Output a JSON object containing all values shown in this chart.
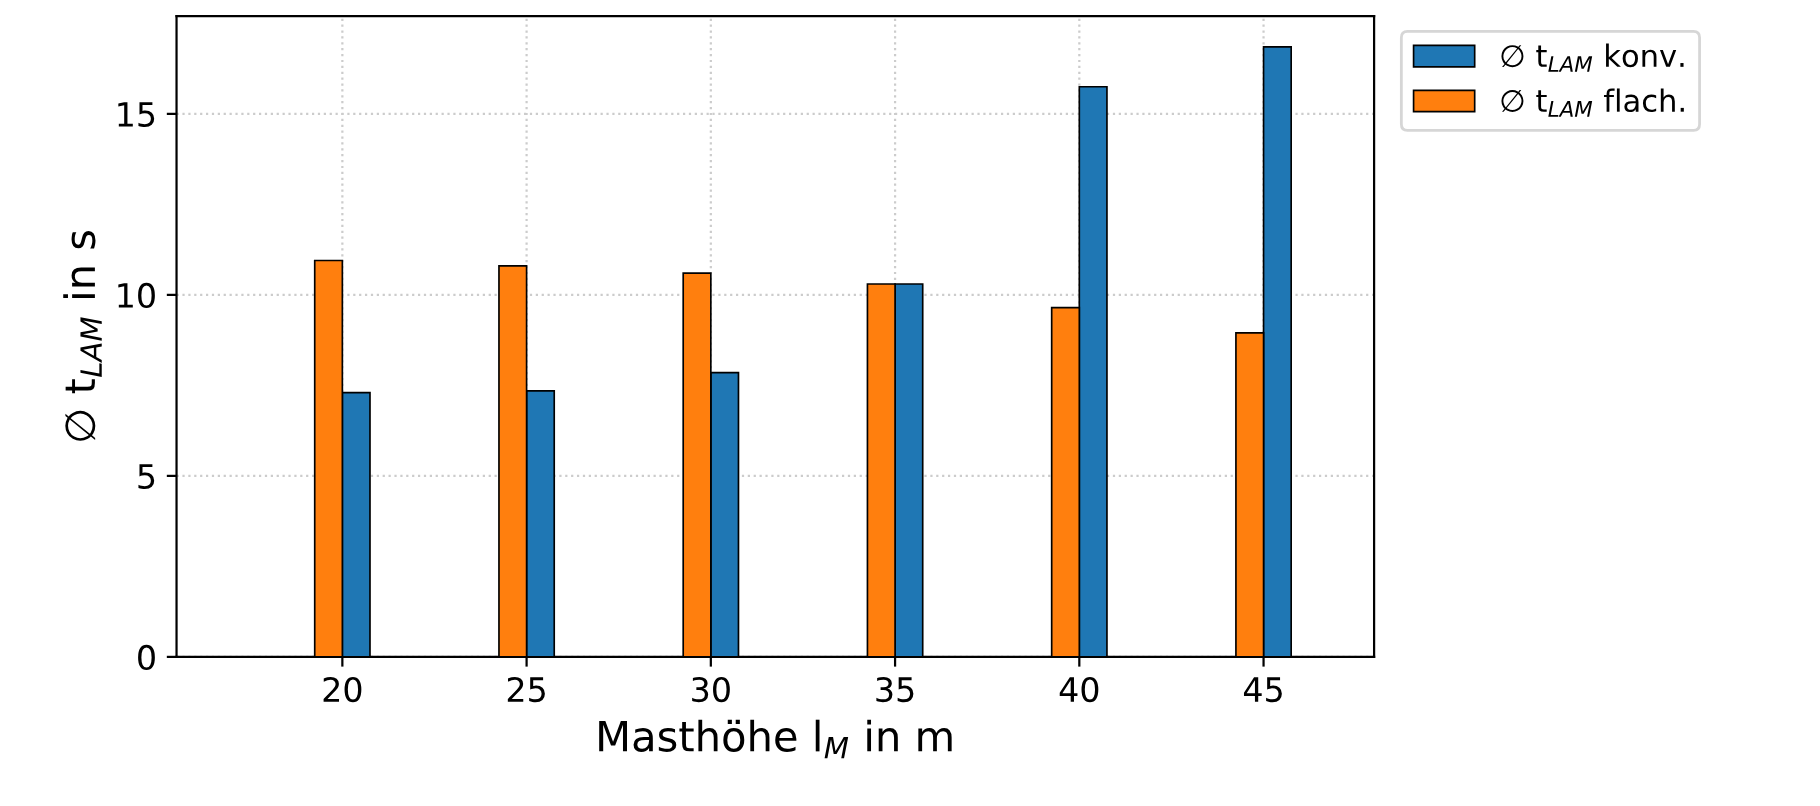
{
  "chart_data": {
    "type": "bar",
    "xlabel": "Masthöhe l$_{M}$ in m",
    "ylabel": "∅ t$_{LAM}$ in s",
    "categories": [
      "20",
      "25",
      "30",
      "35",
      "40",
      "45"
    ],
    "series": [
      {
        "name": "∅ t$_{LAM}$ konv.",
        "color": "#1f77b4",
        "values": [
          7.3,
          7.35,
          7.85,
          10.3,
          15.75,
          16.85
        ]
      },
      {
        "name": "∅ t$_{LAM}$ flach.",
        "color": "#ff7f0e",
        "values": [
          10.95,
          10.8,
          10.6,
          10.3,
          9.65,
          8.95
        ]
      }
    ],
    "ylim": [
      0,
      17.7
    ],
    "yticks": [
      0,
      5,
      10,
      15
    ],
    "grid": true,
    "legend": "top right"
  }
}
